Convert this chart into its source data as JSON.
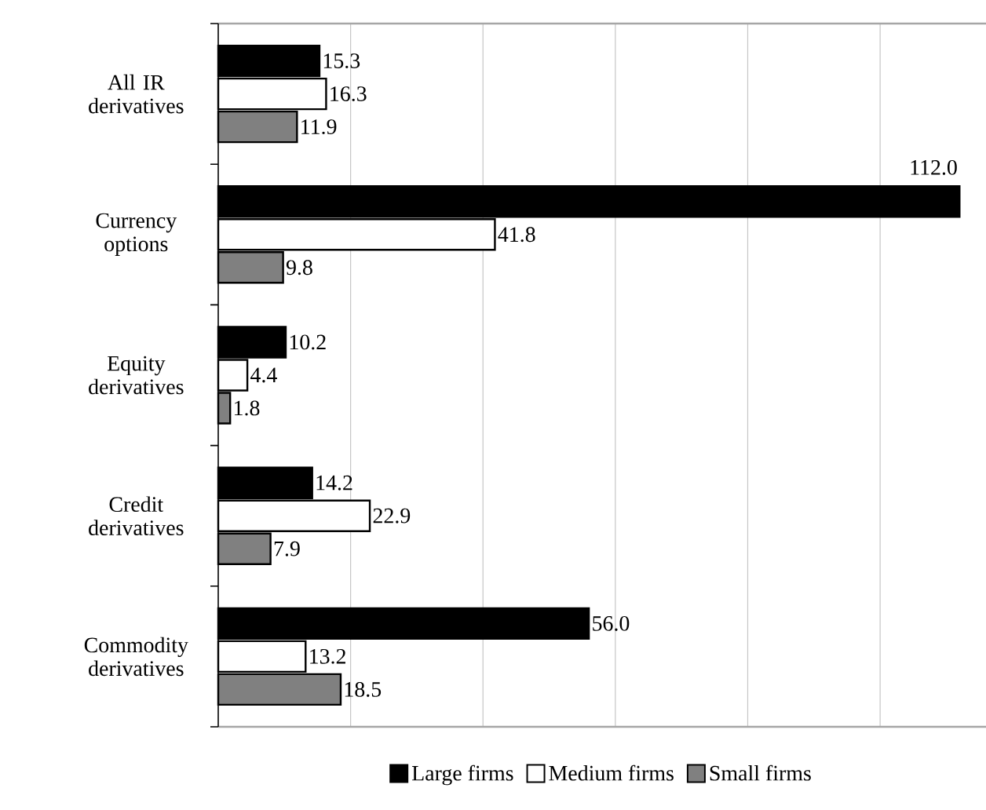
{
  "chart_data": {
    "type": "bar",
    "orientation": "horizontal",
    "categories": [
      "All IR derivatives",
      "Currency options",
      "Equity derivatives",
      "Credit derivatives",
      "Commodity derivatives"
    ],
    "series": [
      {
        "name": "Large firms",
        "color": "#000000",
        "values": [
          15.3,
          112.0,
          10.2,
          14.2,
          56.0
        ],
        "value_labels": [
          "15.3",
          "112.0",
          "10.2",
          "14.2",
          "56.0"
        ]
      },
      {
        "name": "Medium firms",
        "color": "#ffffff",
        "values": [
          16.3,
          41.8,
          4.4,
          22.9,
          13.2
        ],
        "value_labels": [
          "16.3",
          "41.8",
          "4.4",
          "22.9",
          "13.2"
        ]
      },
      {
        "name": "Small firms",
        "color": "#808080",
        "values": [
          11.9,
          9.8,
          1.8,
          7.9,
          18.5
        ],
        "value_labels": [
          "11.9",
          "9.8",
          "1.8",
          "7.9",
          "18.5"
        ]
      }
    ],
    "xlim": [
      0,
      116
    ],
    "xticks": [
      {
        "value": 20,
        "label": null
      },
      {
        "value": 40,
        "label": null
      },
      {
        "value": 60,
        "label": null
      },
      {
        "value": 80,
        "label": null
      },
      {
        "value": 100,
        "label": null
      }
    ],
    "tick_labels": "y",
    "grid": "x",
    "legend": "bottom"
  }
}
